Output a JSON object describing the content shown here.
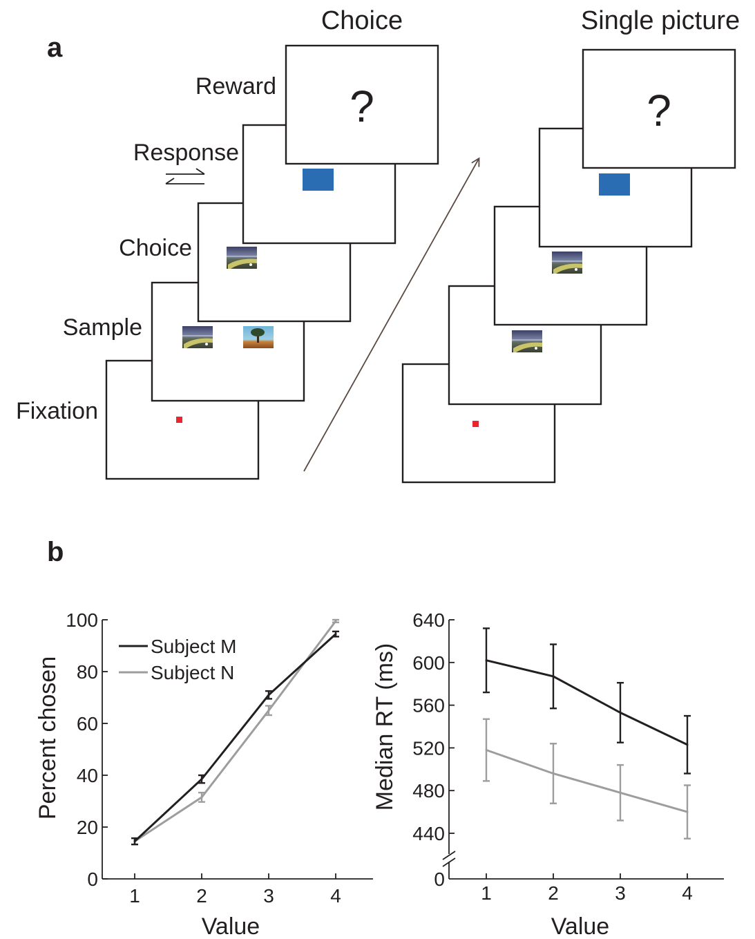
{
  "panel_a": {
    "letter": "a",
    "choice_column": {
      "title": "Choice",
      "stages": [
        "Fixation",
        "Sample",
        "Choice",
        "Response",
        "Reward"
      ],
      "reward_symbol": "?"
    },
    "single_column": {
      "title": "Single picture",
      "reward_symbol": "?"
    },
    "colors": {
      "fixation_dot": "#e8262f",
      "response_target": "#2b6db3",
      "arrow": "#5a4a42"
    },
    "icons": [
      "horizontal-double-arrow-icon",
      "stimulus-photo-road",
      "stimulus-photo-tree",
      "diagonal-arrow-icon"
    ]
  },
  "panel_b": {
    "letter": "b"
  },
  "chart_data": [
    {
      "type": "line",
      "xlabel": "Value",
      "ylabel": "Percent chosen",
      "x": [
        1,
        2,
        3,
        4
      ],
      "xticks": [
        "1",
        "2",
        "3",
        "4"
      ],
      "ylim": [
        0,
        100
      ],
      "yticks": [
        "0",
        "20",
        "40",
        "60",
        "80",
        "100"
      ],
      "legend_placement": "top-left",
      "series": [
        {
          "name": "Subject M",
          "color": "#231f20",
          "values": [
            14.5,
            38.5,
            71,
            94.5
          ],
          "error": [
            1.2,
            1.5,
            1.5,
            1.0
          ]
        },
        {
          "name": "Subject N",
          "color": "#9d9d9d",
          "values": [
            14.5,
            31.5,
            65,
            99.5
          ],
          "error": [
            1.2,
            1.8,
            1.8,
            0.5
          ]
        }
      ]
    },
    {
      "type": "line",
      "xlabel": "Value",
      "ylabel": "Median RT (ms)",
      "x": [
        1,
        2,
        3,
        4
      ],
      "xticks": [
        "1",
        "2",
        "3",
        "4"
      ],
      "ylim": [
        440,
        640
      ],
      "yticks": [
        "440",
        "480",
        "520",
        "560",
        "600",
        "640"
      ],
      "y_origin_label": "0",
      "axis_break": true,
      "series": [
        {
          "color": "#231f20",
          "values": [
            602,
            587,
            553,
            523
          ],
          "error": [
            30,
            30,
            28,
            27
          ]
        },
        {
          "color": "#9d9d9d",
          "values": [
            518,
            496,
            478,
            460
          ],
          "error": [
            29,
            28,
            26,
            25
          ]
        }
      ]
    }
  ]
}
